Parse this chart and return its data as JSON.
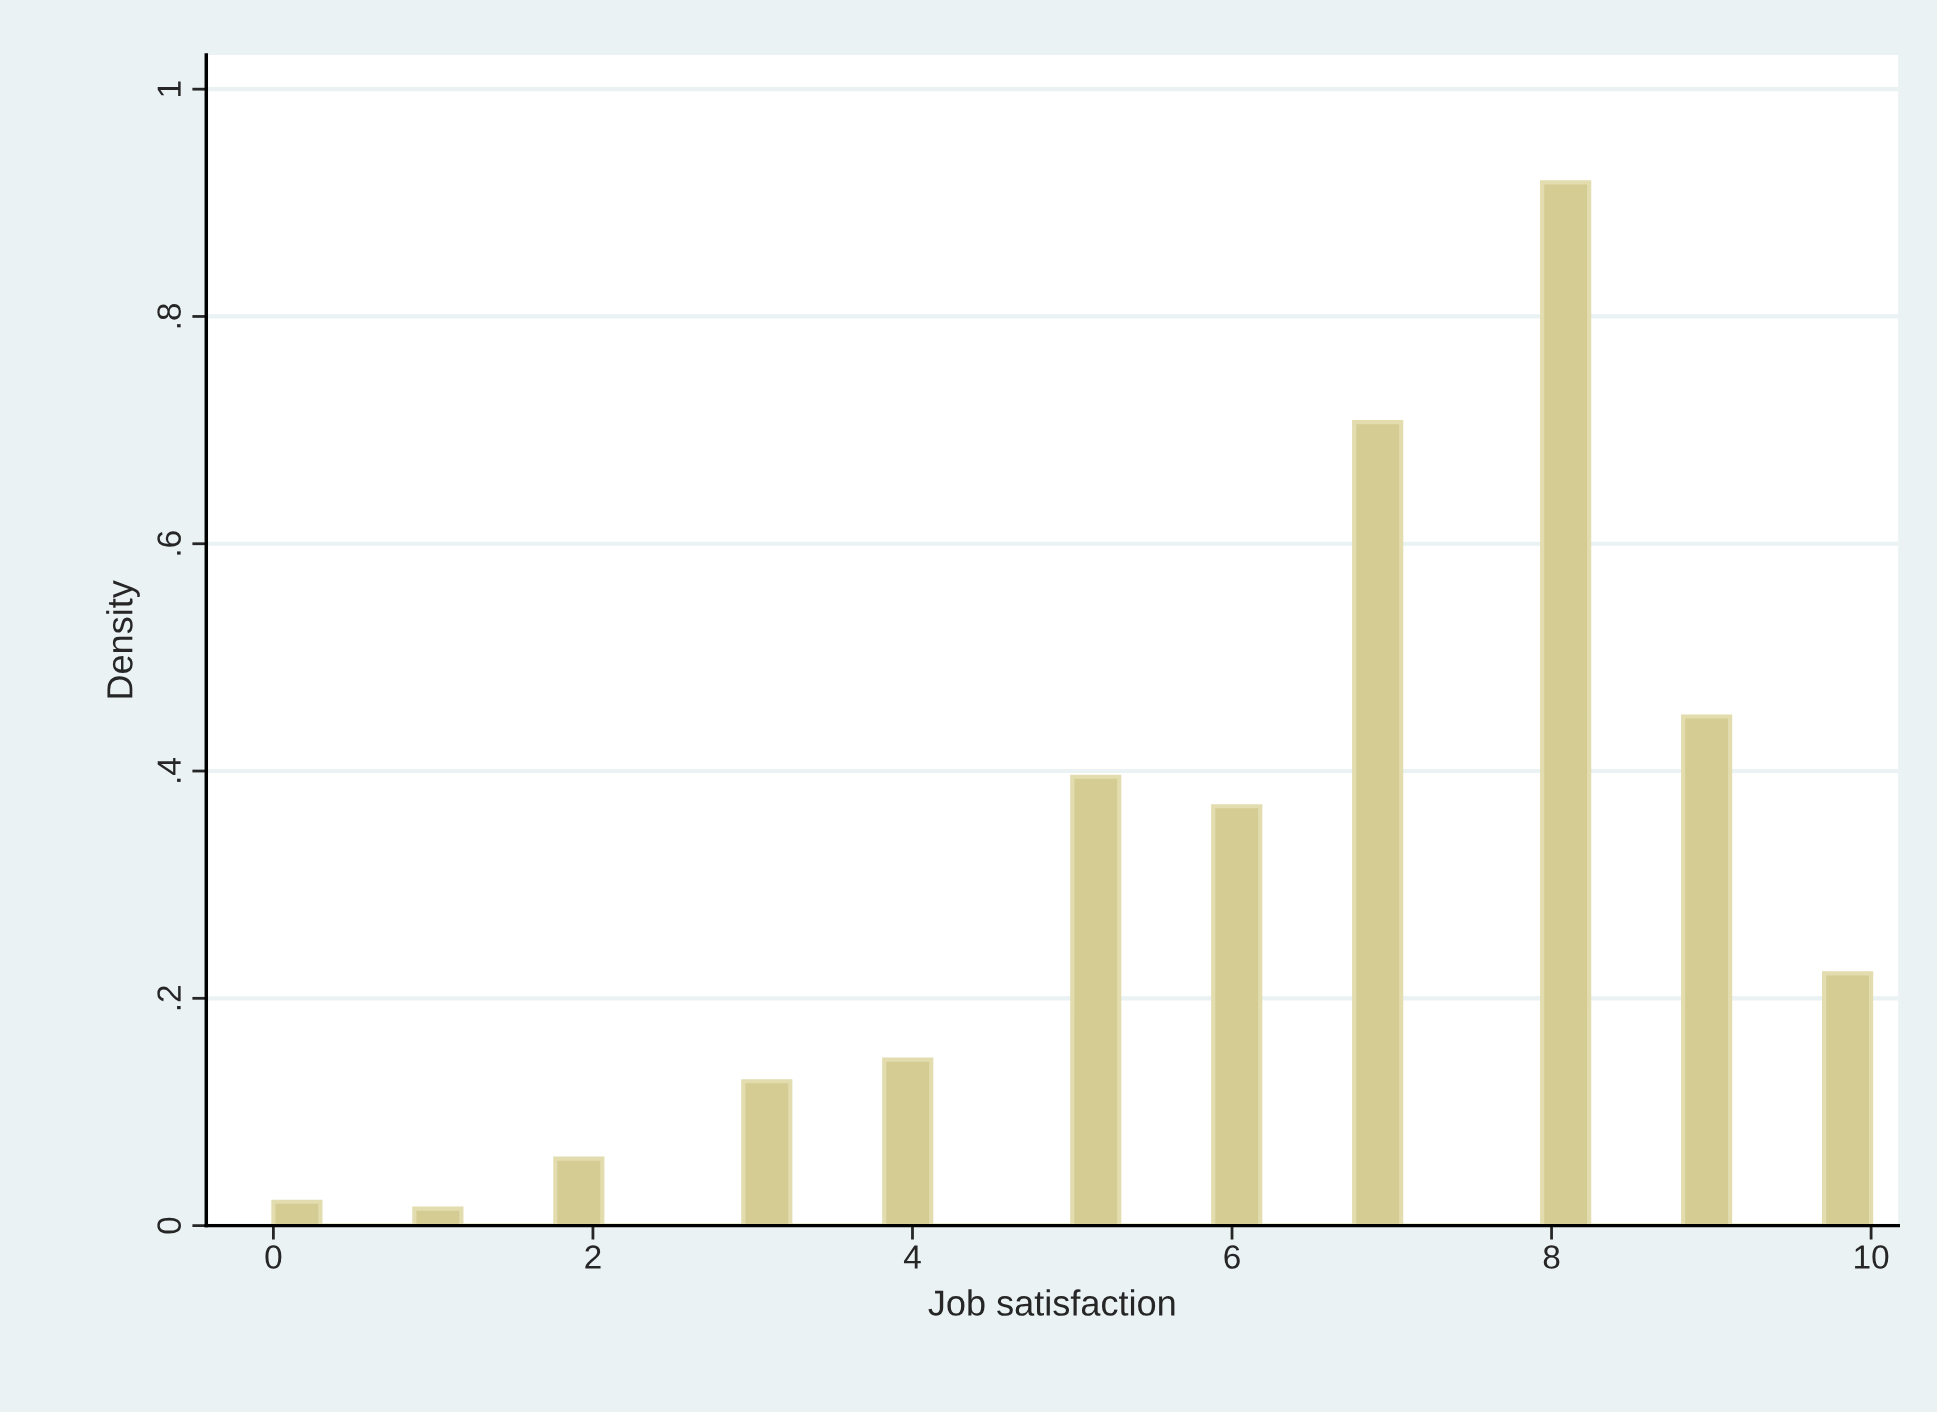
{
  "chart_data": {
    "type": "histogram",
    "xlabel": "Job satisfaction",
    "ylabel": "Density",
    "bins": [
      0,
      0.2941,
      0.5882,
      0.8824,
      1.1765,
      1.4706,
      1.7647,
      2.0588,
      2.3529,
      2.6471,
      2.9412,
      3.2353,
      3.5294,
      3.8235,
      4.1176,
      4.4118,
      4.7059,
      5.0,
      5.2941,
      5.5882,
      5.8824,
      6.1765,
      6.4706,
      6.7647,
      7.0588,
      7.3529,
      7.6471,
      7.9412,
      8.2353,
      8.5294,
      8.8235,
      9.1176,
      9.4118,
      9.7059,
      10.0
    ],
    "values": [
      0.021,
      0,
      0,
      0.015,
      0,
      0,
      0.059,
      0,
      0,
      0,
      0.127,
      0,
      0,
      0.146,
      0,
      0,
      0,
      0.395,
      0,
      0,
      0.369,
      0,
      0,
      0.707,
      0,
      0,
      0,
      0.918,
      0,
      0,
      0.448,
      0,
      0,
      0.222
    ],
    "color": "#d5cc93",
    "xlim": [
      -0.42,
      10.17
    ],
    "ylim": [
      0,
      1.03
    ],
    "xticks": [
      0,
      2,
      4,
      6,
      8,
      10
    ],
    "yticks": [
      0,
      {
        "value": 0.2,
        "label": ".2"
      },
      {
        "value": 0.4,
        "label": ".4"
      },
      {
        "value": 0.6,
        "label": ".6"
      },
      {
        "value": 0.8,
        "label": ".8"
      },
      1
    ],
    "grid": "y"
  }
}
